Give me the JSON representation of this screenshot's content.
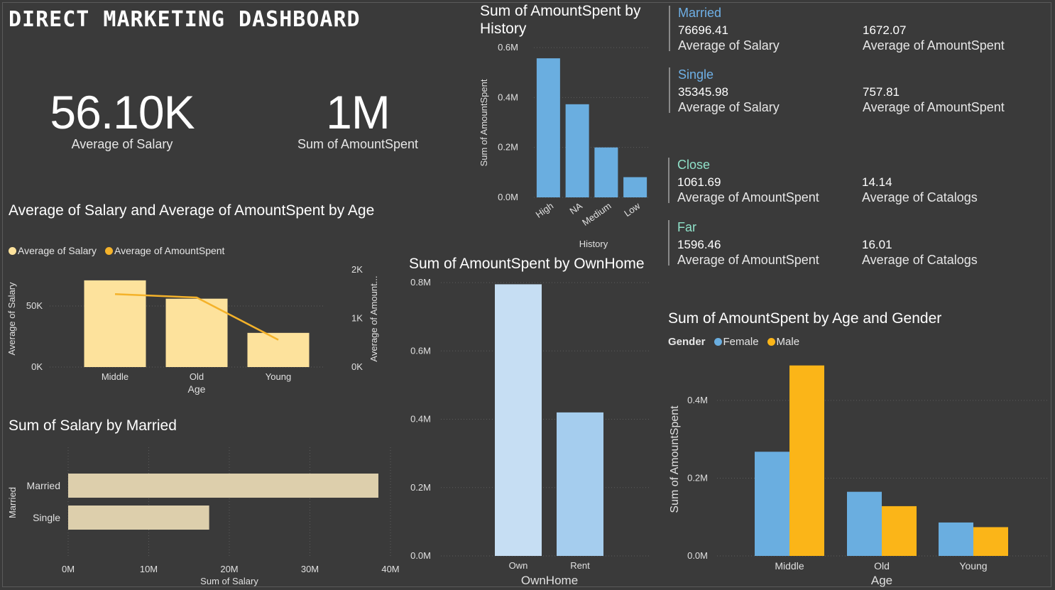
{
  "dashboard": {
    "title": "DIRECT MARKETING DASHBOARD"
  },
  "kpis": [
    {
      "value": "56.10K",
      "label": "Average of Salary"
    },
    {
      "value": "1M",
      "label": "Sum of AmountSpent"
    }
  ],
  "cards": [
    {
      "title": "Married",
      "title_color": "#6fb0e6",
      "metrics": [
        {
          "value": "76696.41",
          "label": "Average of Salary"
        },
        {
          "value": "1672.07",
          "label": "Average of AmountSpent"
        }
      ]
    },
    {
      "title": "Single",
      "title_color": "#6fb0e6",
      "metrics": [
        {
          "value": "35345.98",
          "label": "Average of Salary"
        },
        {
          "value": "757.81",
          "label": "Average of AmountSpent"
        }
      ]
    },
    {
      "title": "Close",
      "title_color": "#8fe0c8",
      "metrics": [
        {
          "value": "1061.69",
          "label": "Average of AmountSpent"
        },
        {
          "value": "14.14",
          "label": "Average of Catalogs"
        }
      ]
    },
    {
      "title": "Far",
      "title_color": "#8fe0c8",
      "metrics": [
        {
          "value": "1596.46",
          "label": "Average of AmountSpent"
        },
        {
          "value": "16.01",
          "label": "Average of Catalogs"
        }
      ]
    }
  ],
  "chart_data": [
    {
      "id": "history",
      "type": "bar",
      "title": "Sum of AmountSpent by History",
      "xlabel": "History",
      "ylabel": "Sum of AmountSpent",
      "categories": [
        "High",
        "NA",
        "Medium",
        "Low"
      ],
      "values": [
        0.557,
        0.373,
        0.2,
        0.081
      ],
      "ylim": [
        0,
        0.6
      ],
      "yticks": [
        "0.0M",
        "0.2M",
        "0.4M",
        "0.6M"
      ],
      "color": "#6aaee0"
    },
    {
      "id": "age_combo",
      "type": "bar",
      "title": "Average of Salary and Average of AmountSpent by Age",
      "xlabel": "Age",
      "ylabel": "Average of Salary",
      "ylabel2": "Average of Amount...",
      "categories": [
        "Middle",
        "Old",
        "Young"
      ],
      "series": [
        {
          "name": "Average of Salary",
          "type": "bar",
          "values": [
            71000,
            56000,
            28000
          ],
          "color": "#fde29c"
        },
        {
          "name": "Average of AmountSpent",
          "type": "line",
          "values": [
            1500,
            1430,
            560
          ],
          "color": "#f4b22a"
        }
      ],
      "ylim": [
        0,
        75000
      ],
      "ylim2": [
        0,
        2000
      ],
      "yticks": [
        "0K",
        "50K"
      ],
      "yticks2": [
        "0K",
        "1K",
        "2K"
      ]
    },
    {
      "id": "married",
      "type": "bar",
      "orientation": "horizontal",
      "title": "Sum of Salary by Married",
      "xlabel": "Sum of Salary",
      "ylabel": "Married",
      "categories": [
        "Married",
        "Single"
      ],
      "values": [
        38.5,
        17.5
      ],
      "xlim": [
        0,
        40
      ],
      "xticks": [
        "0M",
        "10M",
        "20M",
        "30M",
        "40M"
      ],
      "color": "#ddcfac"
    },
    {
      "id": "ownhome",
      "type": "bar",
      "title": "Sum of AmountSpent by OwnHome",
      "xlabel": "OwnHome",
      "categories": [
        "Own",
        "Rent"
      ],
      "values": [
        0.795,
        0.42
      ],
      "colors": [
        "#c6def3",
        "#a5cdee"
      ],
      "ylim": [
        0,
        0.8
      ],
      "yticks": [
        "0.0M",
        "0.2M",
        "0.4M",
        "0.6M",
        "0.8M"
      ]
    },
    {
      "id": "age_gender",
      "type": "bar",
      "title": "Sum of AmountSpent by Age and Gender",
      "xlabel": "Age",
      "ylabel": "Sum of AmountSpent",
      "legend_title": "Gender",
      "categories": [
        "Middle",
        "Old",
        "Young"
      ],
      "series": [
        {
          "name": "Female",
          "values": [
            0.268,
            0.165,
            0.086
          ],
          "color": "#6aaee0"
        },
        {
          "name": "Male",
          "values": [
            0.49,
            0.128,
            0.074
          ],
          "color": "#fbb518"
        }
      ],
      "ylim": [
        0,
        0.5
      ],
      "yticks": [
        "0.0M",
        "0.2M",
        "0.4M"
      ]
    }
  ]
}
